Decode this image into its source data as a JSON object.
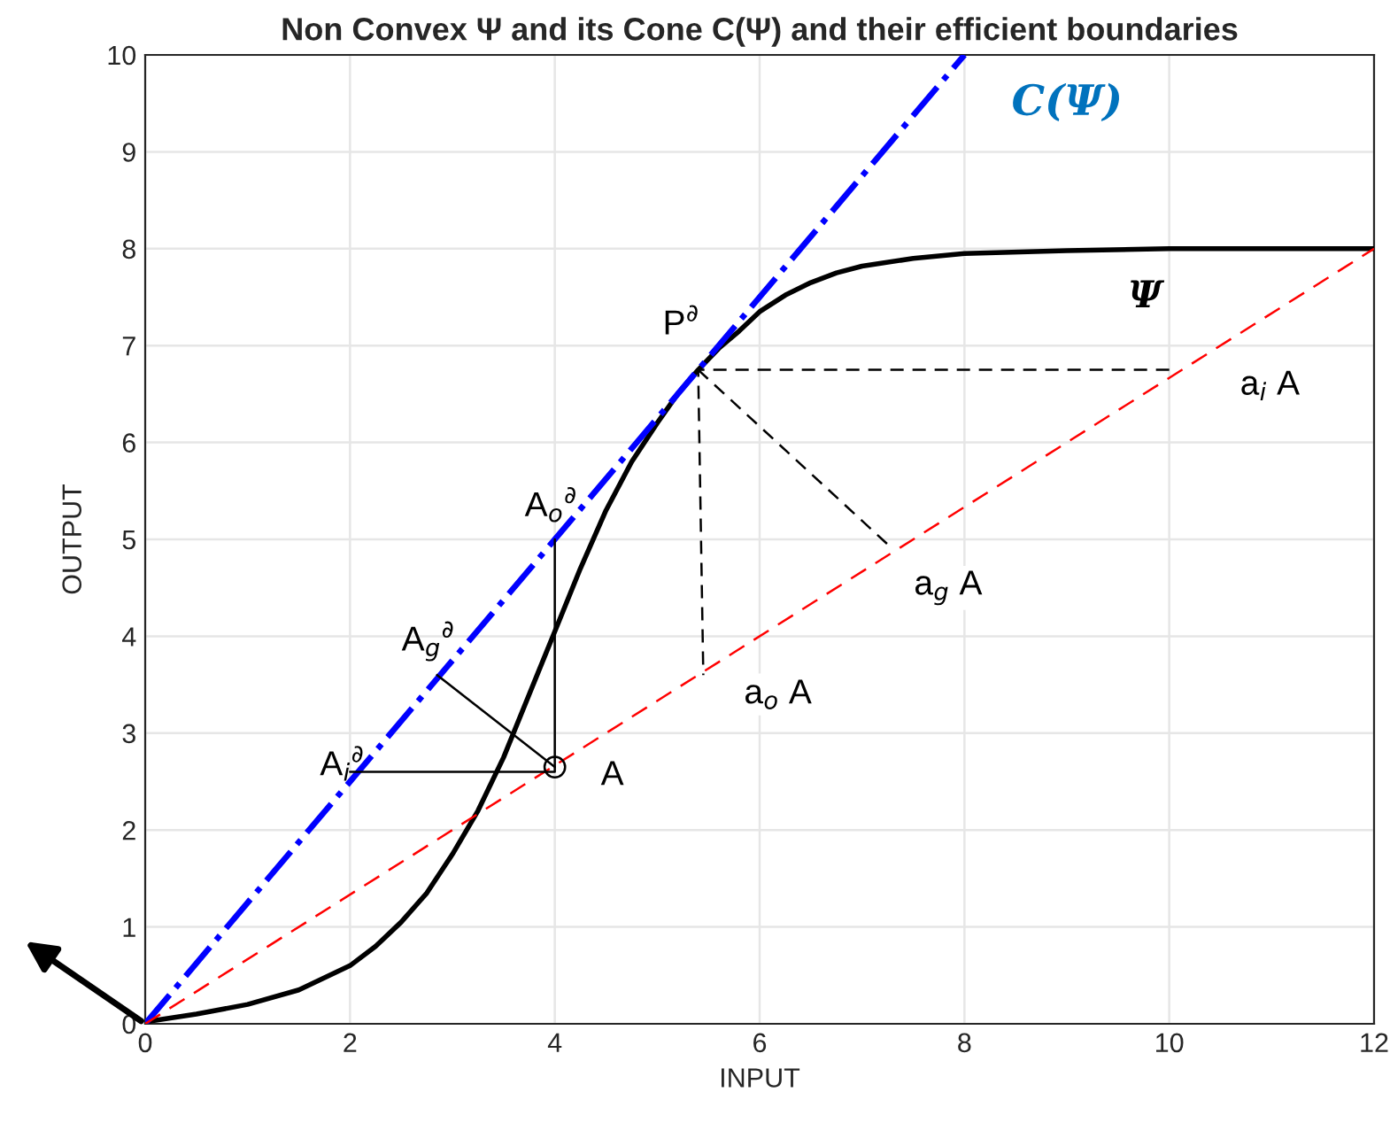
{
  "chart_data": {
    "type": "line",
    "title": "Non Convex Ψ and its Cone C(Ψ) and their efficient boundaries",
    "xlabel": "INPUT",
    "ylabel": "OUTPUT",
    "xlim": [
      0,
      12
    ],
    "ylim": [
      0,
      10
    ],
    "xticks": [
      0,
      2,
      4,
      6,
      8,
      10,
      12
    ],
    "yticks": [
      0,
      1,
      2,
      3,
      4,
      5,
      6,
      7,
      8,
      9,
      10
    ],
    "grid": true,
    "legend": false,
    "series": [
      {
        "color": "#000000",
        "line_style": "solid",
        "x": [
          0,
          0.5,
          1,
          1.5,
          2,
          2.25,
          2.5,
          2.75,
          3,
          3.25,
          3.5,
          3.75,
          4,
          4.25,
          4.5,
          4.75,
          5,
          5.2,
          5.4,
          5.6,
          5.8,
          6,
          6.25,
          6.5,
          6.75,
          7,
          7.5,
          8,
          9,
          10,
          11,
          12
        ],
        "values": [
          0.02,
          0.1,
          0.2,
          0.35,
          0.6,
          0.8,
          1.05,
          1.35,
          1.75,
          2.2,
          2.75,
          3.4,
          4.05,
          4.7,
          5.3,
          5.8,
          6.2,
          6.5,
          6.75,
          6.97,
          7.15,
          7.35,
          7.52,
          7.65,
          7.75,
          7.82,
          7.9,
          7.95,
          7.98,
          8,
          8,
          8
        ]
      },
      {
        "color": "#0000ff",
        "line_style": "dashdot",
        "x": [
          0,
          8
        ],
        "values": [
          0,
          10
        ]
      },
      {
        "color": "#ff0000",
        "line_style": "dashed",
        "x": [
          0,
          12
        ],
        "values": [
          0,
          8
        ]
      },
      {
        "color": "#000000",
        "line_style": "solid",
        "x": [
          2,
          4,
          4
        ],
        "values": [
          2.6,
          2.6,
          5
        ]
      },
      {
        "color": "#000000",
        "line_style": "solid",
        "x": [
          4,
          2.85
        ],
        "values": [
          2.65,
          3.6
        ]
      },
      {
        "color": "#000000",
        "line_style": "dashed",
        "x": [
          10,
          5.4,
          5.45
        ],
        "values": [
          6.75,
          6.75,
          3.6
        ]
      },
      {
        "color": "#000000",
        "line_style": "dashed",
        "x": [
          5.4,
          7.3
        ],
        "values": [
          6.75,
          4.9
        ]
      },
      {
        "type": "scatter",
        "color": "#000000",
        "marker": "circle",
        "x": [
          4
        ],
        "values": [
          2.65
        ]
      }
    ],
    "annotations": [
      "C(Ψ)",
      "Ψ",
      {
        "text": "P$^{∂}$",
        "x": 5.4,
        "y": 6.75
      },
      {
        "text": "A$_{o}$$^{∂}$",
        "x": 4,
        "y": 5
      },
      {
        "text": "A$_{g}$$^{∂}$",
        "x": 2.85,
        "y": 3.6
      },
      {
        "text": "A$_{i}$$^{∂}$",
        "x": 2,
        "y": 2.6
      },
      {
        "text": "A",
        "x": 4,
        "y": 2.65
      },
      {
        "text": "a$_{o}$ A",
        "x": 5.45,
        "y": 3.6
      },
      {
        "text": "a$_{g}$ A",
        "x": 7.3,
        "y": 4.9
      },
      {
        "text": "a$_{i}$ A",
        "x": 10,
        "y": 6.75
      }
    ]
  }
}
